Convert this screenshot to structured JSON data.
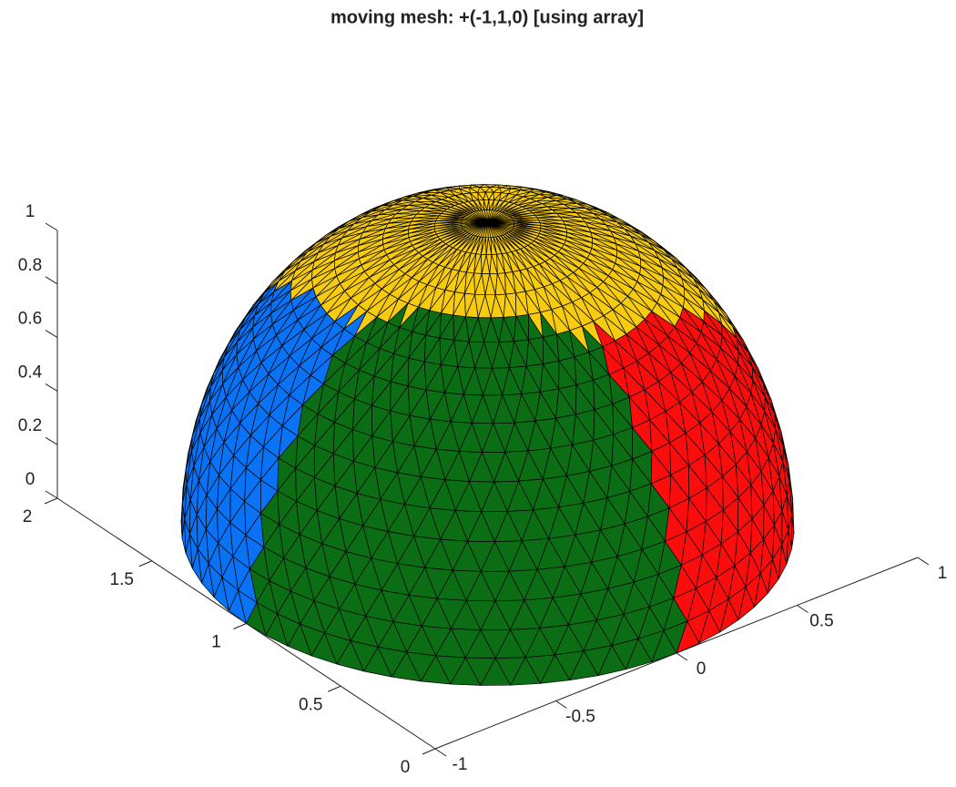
{
  "chart_data": {
    "type": "mesh3d",
    "title": "moving mesh: +(-1,1,0) [using array]",
    "xlim": [
      -1,
      1
    ],
    "xticks": [
      -1,
      -0.5,
      0,
      0.5,
      1
    ],
    "ylim": [
      0,
      2
    ],
    "yticks": [
      0,
      0.5,
      1,
      1.5,
      2
    ],
    "zlim": [
      0,
      1
    ],
    "zticks": [
      0,
      0.2,
      0.4,
      0.6,
      0.8,
      1
    ],
    "colors": [
      "#0c6e14",
      "#0a72f5",
      "#fc0d0d",
      "#f7cc10"
    ]
  }
}
